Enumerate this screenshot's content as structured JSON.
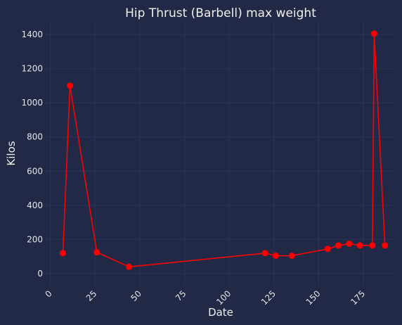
{
  "chart_data": {
    "type": "line",
    "title": "Hip Thrust (Barbell) max weight",
    "xlabel": "Date",
    "ylabel": "Kilos",
    "xlim": [
      -3,
      193
    ],
    "ylim": [
      -70,
      1470
    ],
    "x_ticks": [
      0,
      25,
      50,
      75,
      100,
      125,
      150,
      175
    ],
    "y_ticks": [
      0,
      200,
      400,
      600,
      800,
      1000,
      1200,
      1400
    ],
    "x_tick_labels": [
      "0",
      "25",
      "50",
      "75",
      "100",
      "125",
      "150",
      "175"
    ],
    "y_tick_labels": [
      "0",
      "200",
      "400",
      "600",
      "800",
      "1000",
      "1200",
      "1400"
    ],
    "grid": true,
    "series": [
      {
        "color": "#ff0000",
        "x": [
          7,
          11,
          26,
          44,
          120,
          126,
          135,
          155,
          161,
          167,
          173,
          180,
          181,
          187
        ],
        "y": [
          120,
          1100,
          125,
          40,
          120,
          105,
          105,
          145,
          165,
          175,
          165,
          165,
          1405,
          165
        ]
      }
    ]
  }
}
